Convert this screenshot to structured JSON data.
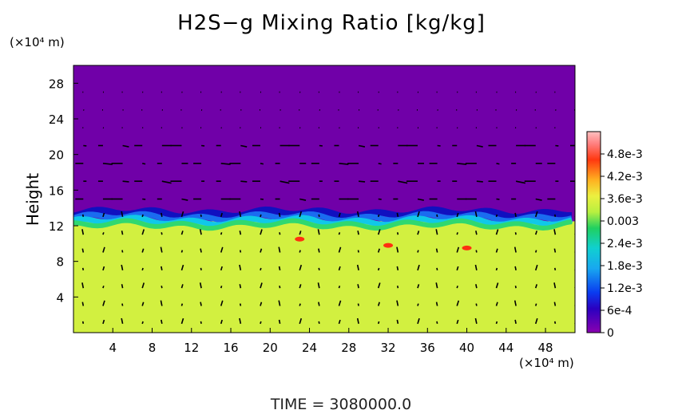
{
  "chart_data": {
    "type": "heatmap",
    "title": "H2S−g Mixing Ratio [kg/kg]",
    "ylabel": "Height",
    "x_unit": "(×10⁴ m)",
    "y_unit": "(×10⁴ m)",
    "x_ticks": [
      "4",
      "8",
      "12",
      "16",
      "20",
      "24",
      "28",
      "32",
      "36",
      "40",
      "44",
      "48"
    ],
    "y_ticks": [
      "4",
      "8",
      "12",
      "16",
      "20",
      "24",
      "28"
    ],
    "xlim": [
      0,
      51
    ],
    "ylim": [
      0,
      30
    ],
    "colorbar_labels": [
      "0",
      "6e-4",
      "1.2e-3",
      "1.8e-3",
      "2.4e-3",
      "0.003",
      "3.6e-3",
      "4.2e-3",
      "4.8e-3"
    ],
    "colorbar_range": [
      0,
      0.0052
    ],
    "field": {
      "upper_value": 0,
      "lower_value": 0.0033,
      "interface_height": 12.5,
      "high_spots": [
        [
          32,
          9.8,
          0.0048
        ],
        [
          40,
          9.5,
          0.0046
        ],
        [
          23,
          10.5,
          0.0043
        ]
      ]
    },
    "vectors": "wind arrows overlaid on grid",
    "colors": {
      "upper": "#7000a8",
      "lower": "#d2f040",
      "band_dark": "#1010c0",
      "band_blue": "#1a6cf0",
      "band_cyan": "#10c8e8",
      "band_green": "#30d870",
      "hot": "#ff3010"
    }
  },
  "footer": {
    "time_label": "TIME  =  3080000.0"
  }
}
